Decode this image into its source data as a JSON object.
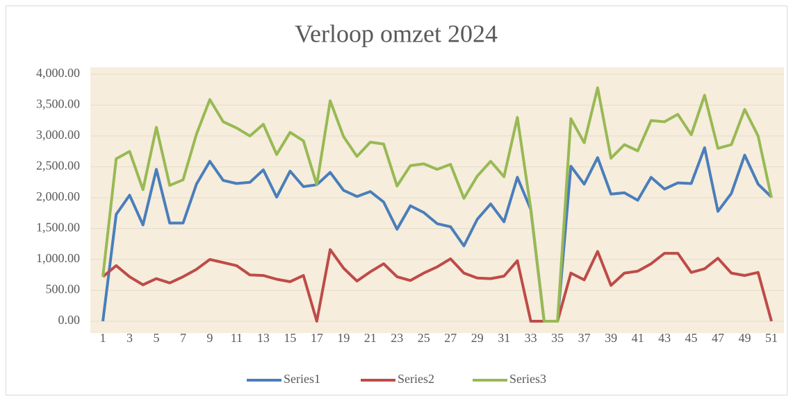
{
  "chart_data": {
    "type": "line",
    "title": "Verloop omzet 2024",
    "categories": [
      1,
      null,
      3,
      null,
      5,
      null,
      7,
      null,
      9,
      null,
      11,
      null,
      13,
      null,
      15,
      null,
      17,
      null,
      19,
      null,
      21,
      null,
      23,
      null,
      25,
      null,
      27,
      null,
      29,
      null,
      31,
      null,
      33,
      null,
      35,
      null,
      37,
      null,
      39,
      null,
      41,
      null,
      43,
      null,
      45,
      null,
      47,
      null,
      49,
      null,
      51
    ],
    "series": [
      {
        "name": "Series1",
        "color": "#4a7ebb",
        "values": [
          0,
          1730,
          2040,
          1560,
          2460,
          1590,
          1590,
          2220,
          2590,
          2280,
          2230,
          2250,
          2450,
          2010,
          2430,
          2180,
          2210,
          2410,
          2120,
          2020,
          2100,
          1930,
          1490,
          1870,
          1760,
          1580,
          1530,
          1220,
          1650,
          1900,
          1610,
          2330,
          1810,
          0,
          0,
          2510,
          2220,
          2650,
          2060,
          2080,
          1960,
          2330,
          2140,
          2240,
          2230,
          2810,
          1780,
          2070,
          2690,
          2220,
          2010
        ]
      },
      {
        "name": "Series2",
        "color": "#be4b48",
        "values": [
          720,
          900,
          720,
          590,
          690,
          620,
          720,
          840,
          1000,
          950,
          900,
          750,
          740,
          680,
          640,
          740,
          0,
          1160,
          860,
          650,
          800,
          930,
          720,
          660,
          780,
          880,
          1010,
          780,
          700,
          690,
          730,
          980,
          0,
          0,
          0,
          780,
          670,
          1130,
          580,
          780,
          810,
          930,
          1100,
          1100,
          790,
          850,
          1020,
          780,
          740,
          790,
          0
        ]
      },
      {
        "name": "Series3",
        "color": "#98b954",
        "values": [
          720,
          2630,
          2750,
          2130,
          3140,
          2200,
          2290,
          3030,
          3590,
          3230,
          3130,
          3000,
          3190,
          2700,
          3060,
          2920,
          2210,
          3570,
          2990,
          2670,
          2900,
          2870,
          2190,
          2520,
          2550,
          2460,
          2540,
          1990,
          2350,
          2590,
          2340,
          3300,
          1820,
          0,
          0,
          3280,
          2890,
          3780,
          2640,
          2860,
          2760,
          3250,
          3230,
          3350,
          3020,
          3660,
          2800,
          2860,
          3430,
          3000,
          2000
        ]
      }
    ],
    "ylim": [
      0,
      4000
    ],
    "yticks": [
      {
        "value": 0,
        "label": "0.00"
      },
      {
        "value": 500,
        "label": "500.00"
      },
      {
        "value": 1000,
        "label": "1,000.00"
      },
      {
        "value": 1500,
        "label": "1,500.00"
      },
      {
        "value": 2000,
        "label": "2,000.00"
      },
      {
        "value": 2500,
        "label": "2,500.00"
      },
      {
        "value": 3000,
        "label": "3,000.00"
      },
      {
        "value": 3500,
        "label": "3,500.00"
      },
      {
        "value": 4000,
        "label": "4,000.00"
      }
    ],
    "grid": true,
    "legend": "bottom"
  }
}
